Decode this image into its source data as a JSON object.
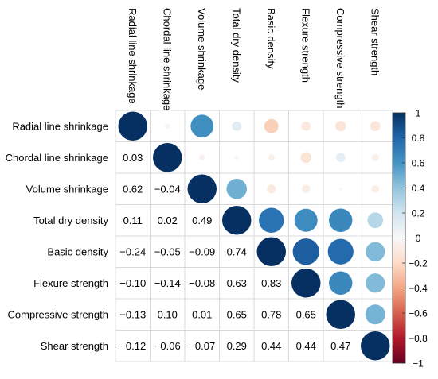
{
  "chart_data": {
    "type": "heatmap",
    "variables": [
      "Radial line shrinkage",
      "Chordal line shrinkage",
      "Volume shrinkage",
      "Total dry density",
      "Basic density",
      "Flexure strength",
      "Compressive strength",
      "Shear strength"
    ],
    "matrix": [
      [
        1.0,
        0.03,
        0.62,
        0.11,
        -0.24,
        -0.1,
        -0.13,
        -0.12
      ],
      [
        0.03,
        1.0,
        -0.04,
        0.02,
        -0.05,
        -0.14,
        0.1,
        -0.06
      ],
      [
        0.62,
        -0.04,
        1.0,
        0.49,
        -0.09,
        -0.08,
        0.01,
        -0.07
      ],
      [
        0.11,
        0.02,
        0.49,
        1.0,
        0.74,
        0.63,
        0.65,
        0.29
      ],
      [
        -0.24,
        -0.05,
        -0.09,
        0.74,
        1.0,
        0.83,
        0.78,
        0.44
      ],
      [
        -0.1,
        -0.14,
        -0.08,
        0.63,
        0.83,
        1.0,
        0.65,
        0.44
      ],
      [
        -0.13,
        0.1,
        0.01,
        0.65,
        0.78,
        0.65,
        1.0,
        0.47
      ],
      [
        -0.12,
        -0.06,
        -0.07,
        0.29,
        0.44,
        0.44,
        0.47,
        1.0
      ]
    ],
    "lower_triangle": "numbers",
    "upper_triangle": "circles",
    "legend": {
      "position": "right",
      "range": [
        -1,
        1
      ],
      "ticks": [
        "1",
        "0.8",
        "0.6",
        "0.4",
        "0.2",
        "0",
        "−0.2",
        "−0.4",
        "−0.6",
        "−0.8",
        "−1"
      ]
    },
    "colors": {
      "positive": "#053061",
      "neutral": "#f7f7f7",
      "negative": "#67001f"
    },
    "grid": true
  }
}
